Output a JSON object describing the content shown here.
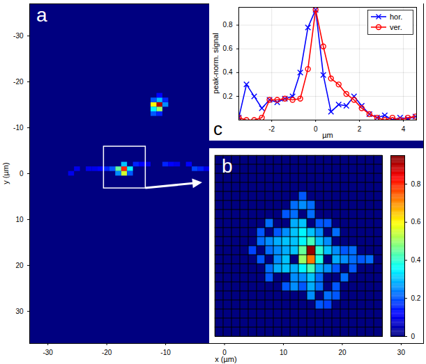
{
  "chart_data": [
    {
      "type": "heatmap",
      "panel_label": "a",
      "x_label": "x (µm)",
      "y_label": "y (µm)",
      "xlim": [
        -33.1,
        33.8
      ],
      "ylim": [
        -37,
        37
      ],
      "xticks": [
        -30,
        -20,
        -10,
        0,
        10,
        20,
        30
      ],
      "yticks": [
        -30,
        -20,
        -10,
        0,
        10,
        20,
        30
      ],
      "cells": [
        [
          -17,
          -1,
          0.8
        ],
        [
          -17,
          0,
          0.55
        ],
        [
          -18,
          -1,
          0.45
        ],
        [
          -16,
          -1,
          0.35
        ],
        [
          -17,
          -2,
          0.3
        ],
        [
          -18,
          0,
          0.25
        ],
        [
          -19,
          -1,
          0.2
        ],
        [
          -20,
          -1,
          0.15
        ],
        [
          -16,
          0,
          0.2
        ],
        [
          -21,
          -1,
          0.12
        ],
        [
          -22,
          -1,
          0.1
        ],
        [
          -23,
          -1,
          0.1
        ],
        [
          -15,
          -2,
          0.15
        ],
        [
          -14,
          -2,
          0.12
        ],
        [
          -13,
          -2,
          0.1
        ],
        [
          -11,
          -15,
          0.9
        ],
        [
          -12,
          -15,
          0.6
        ],
        [
          -11,
          -14,
          0.5
        ],
        [
          -12,
          -14,
          0.35
        ],
        [
          -11,
          -16,
          0.3
        ],
        [
          -10,
          -15,
          0.25
        ],
        [
          -12,
          -13,
          0.2
        ],
        [
          -11,
          -13,
          0.15
        ],
        [
          -10,
          -16,
          0.15
        ],
        [
          -12,
          -16,
          0.2
        ],
        [
          -11,
          -17,
          0.12
        ],
        [
          -10,
          -2,
          0.15
        ],
        [
          -9,
          -2,
          0.12
        ],
        [
          -8,
          -2,
          0.1
        ],
        [
          -6,
          -2,
          0.12
        ],
        [
          -5,
          -1,
          0.18
        ],
        [
          -4,
          -1,
          0.15
        ],
        [
          -3,
          -1,
          0.1
        ],
        [
          -25,
          -1,
          0.1
        ],
        [
          -26,
          0,
          0.1
        ]
      ],
      "zoom_region": {
        "x": [
          -20.5,
          -13.4
        ],
        "y": [
          -5.9,
          3.2
        ]
      }
    },
    {
      "type": "heatmap",
      "panel_label": "b",
      "rows": 20,
      "columns": 20,
      "tick_labels": false,
      "cells": [
        [
          11,
          10,
          0.93
        ],
        [
          11,
          11,
          0.72
        ],
        [
          10,
          11,
          0.5
        ],
        [
          10,
          10,
          0.45
        ],
        [
          12,
          10,
          0.4
        ],
        [
          11,
          9,
          0.42
        ],
        [
          10,
          9,
          0.35
        ],
        [
          12,
          11,
          0.38
        ],
        [
          11,
          12,
          0.42
        ],
        [
          10,
          12,
          0.35
        ],
        [
          11,
          13,
          0.3
        ],
        [
          12,
          12,
          0.28
        ],
        [
          9,
          10,
          0.3
        ],
        [
          8,
          10,
          0.28
        ],
        [
          7,
          10,
          0.25
        ],
        [
          6,
          10,
          0.22
        ],
        [
          6,
          9,
          0.25
        ],
        [
          5,
          9,
          0.22
        ],
        [
          7,
          9,
          0.28
        ],
        [
          8,
          9,
          0.3
        ],
        [
          9,
          9,
          0.3
        ],
        [
          8,
          8,
          0.25
        ],
        [
          9,
          7,
          0.28
        ],
        [
          9,
          6,
          0.22
        ],
        [
          10,
          5,
          0.25
        ],
        [
          10,
          4,
          0.2
        ],
        [
          11,
          5,
          0.22
        ],
        [
          9,
          8,
          0.3
        ],
        [
          10,
          8,
          0.35
        ],
        [
          10,
          7,
          0.3
        ],
        [
          11,
          8,
          0.3
        ],
        [
          12,
          8,
          0.25
        ],
        [
          12,
          9,
          0.3
        ],
        [
          13,
          9,
          0.25
        ],
        [
          13,
          10,
          0.3
        ],
        [
          14,
          10,
          0.25
        ],
        [
          15,
          10,
          0.2
        ],
        [
          16,
          10,
          0.22
        ],
        [
          17,
          11,
          0.2
        ],
        [
          18,
          11,
          0.22
        ],
        [
          14,
          11,
          0.28
        ],
        [
          15,
          11,
          0.25
        ],
        [
          16,
          11,
          0.22
        ],
        [
          13,
          12,
          0.25
        ],
        [
          14,
          12,
          0.2
        ],
        [
          12,
          13,
          0.22
        ],
        [
          11,
          14,
          0.28
        ],
        [
          10,
          13,
          0.25
        ],
        [
          9,
          12,
          0.28
        ],
        [
          8,
          11,
          0.3
        ],
        [
          7,
          11,
          0.25
        ],
        [
          6,
          12,
          0.22
        ],
        [
          7,
          12,
          0.28
        ],
        [
          8,
          12,
          0.3
        ],
        [
          9,
          13,
          0.25
        ],
        [
          8,
          14,
          0.2
        ],
        [
          9,
          14,
          0.25
        ],
        [
          10,
          14,
          0.2
        ],
        [
          12,
          14,
          0.22
        ],
        [
          11,
          15,
          0.25
        ],
        [
          12,
          16,
          0.2
        ],
        [
          13,
          15,
          0.22
        ],
        [
          14,
          14,
          0.2
        ],
        [
          15,
          13,
          0.22
        ],
        [
          16,
          12,
          0.2
        ],
        [
          7,
          8,
          0.2
        ],
        [
          6,
          7,
          0.22
        ],
        [
          5,
          8,
          0.2
        ],
        [
          13,
          7,
          0.2
        ],
        [
          14,
          8,
          0.22
        ],
        [
          8,
          6,
          0.2
        ],
        [
          9,
          5,
          0.22
        ],
        [
          14,
          15,
          0.2
        ],
        [
          13,
          16,
          0.18
        ],
        [
          6,
          13,
          0.2
        ],
        [
          5,
          11,
          0.2
        ],
        [
          4,
          10,
          0.18
        ],
        [
          11,
          6,
          0.22
        ],
        [
          12,
          7,
          0.2
        ]
      ],
      "colorbar": {
        "range": [
          0,
          0.95
        ],
        "ticks": [
          0,
          0.2,
          0.4,
          0.6,
          0.8
        ]
      }
    },
    {
      "type": "line",
      "panel_label": "c",
      "x_label": "µm",
      "y_label": "peak-norm. signal",
      "x": [
        -3.5,
        -3.15,
        -2.8,
        -2.45,
        -2.1,
        -1.75,
        -1.4,
        -1.05,
        -0.7,
        -0.35,
        0,
        0.35,
        0.7,
        1.05,
        1.4,
        1.75,
        2.1,
        2.45,
        2.8,
        3.15,
        3.5,
        3.85,
        4.2,
        4.55
      ],
      "series": [
        {
          "name": "hor.",
          "color": "#0000ff",
          "marker": "x",
          "line_style": "solid",
          "values": [
            0.02,
            0.3,
            0.2,
            0.1,
            0.17,
            0.15,
            0.18,
            0.2,
            0.4,
            0.78,
            0.93,
            0.38,
            0.07,
            0.13,
            0.12,
            0.2,
            0.12,
            0.05,
            0.02,
            0.04,
            0,
            0.02,
            0.01,
            0.03
          ]
        },
        {
          "name": "ver.",
          "color": "#ff0000",
          "marker": "circle",
          "line_style": "solid",
          "values": [
            0.02,
            0,
            0,
            0.02,
            0.17,
            0.17,
            0.18,
            0.17,
            0.18,
            0.43,
            0.93,
            0.62,
            0.35,
            0.3,
            0.22,
            0.17,
            0.1,
            0.05,
            0.02,
            0,
            0.02,
            0,
            0.02,
            0.03
          ]
        }
      ],
      "xlim": [
        -3.5,
        4.6
      ],
      "ylim": [
        0,
        0.95
      ],
      "xticks": [
        -2,
        0,
        2,
        4
      ],
      "yticks": [
        0.2,
        0.4,
        0.6,
        0.8
      ],
      "grid": true,
      "legend": "top-right"
    }
  ]
}
